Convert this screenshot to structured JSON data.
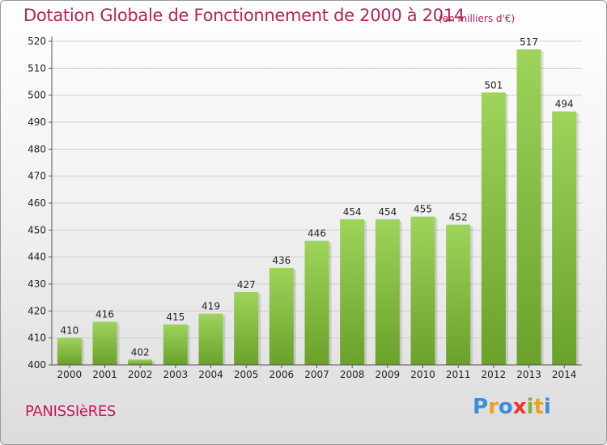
{
  "chart_data": {
    "type": "bar",
    "title": "Dotation Globale de Fonctionnement de 2000 à 2014",
    "subtitle": "(en milliers d'€)",
    "categories": [
      "2000",
      "2001",
      "2002",
      "2003",
      "2004",
      "2005",
      "2006",
      "2007",
      "2008",
      "2009",
      "2010",
      "2011",
      "2012",
      "2013",
      "2014"
    ],
    "values": [
      410,
      416,
      402,
      415,
      419,
      427,
      436,
      446,
      454,
      454,
      455,
      452,
      501,
      517,
      494
    ],
    "ylim": [
      400,
      520
    ],
    "yticks": [
      400,
      410,
      420,
      430,
      440,
      450,
      460,
      470,
      480,
      490,
      500,
      510,
      520
    ],
    "xlabel": "",
    "ylabel": "",
    "grid": true,
    "colors": {
      "bar_light": "#9ed45a",
      "bar_dark": "#6aa12a",
      "title": "#b0245a"
    }
  },
  "footer": {
    "place": "PANISSIèRES",
    "brand": [
      {
        "ch": "P",
        "color": "#3a8fd8"
      },
      {
        "ch": "r",
        "color": "#f0a020"
      },
      {
        "ch": "o",
        "color": "#3a8fd8"
      },
      {
        "ch": "x",
        "color": "#e53935"
      },
      {
        "ch": "i",
        "color": "#7cb342"
      },
      {
        "ch": "t",
        "color": "#f0a020"
      },
      {
        "ch": "i",
        "color": "#3a8fd8"
      }
    ]
  }
}
